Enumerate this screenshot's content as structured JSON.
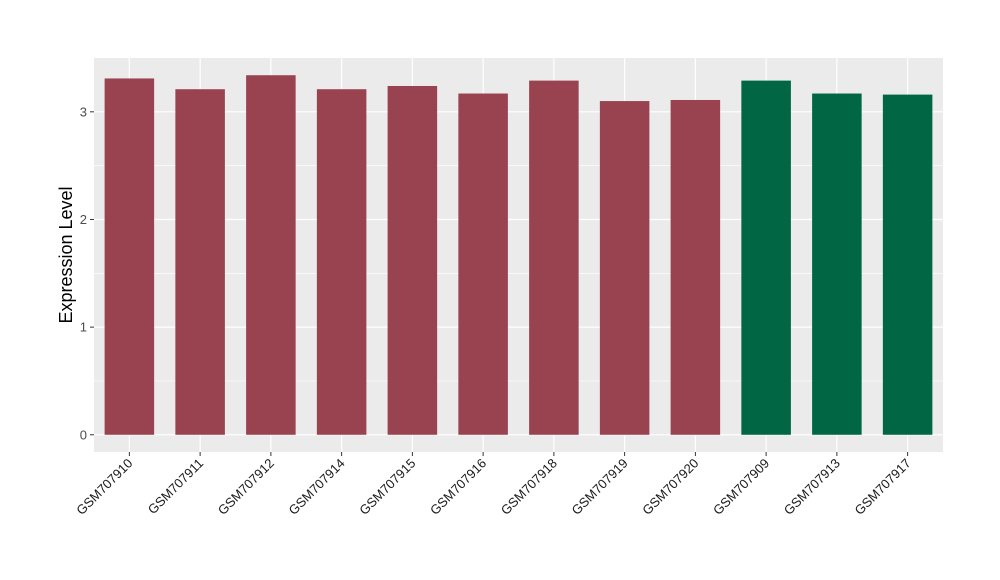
{
  "chart_data": {
    "type": "bar",
    "title": "",
    "xlabel": "",
    "ylabel": "Expression Level",
    "ylim": [
      -0.16,
      3.5
    ],
    "yticks": [
      0,
      1,
      2,
      3
    ],
    "grid": true,
    "legend": "none",
    "categories": [
      "GSM707910",
      "GSM707911",
      "GSM707912",
      "GSM707914",
      "GSM707915",
      "GSM707916",
      "GSM707918",
      "GSM707919",
      "GSM707920",
      "GSM707909",
      "GSM707913",
      "GSM707917"
    ],
    "values": [
      3.31,
      3.21,
      3.34,
      3.21,
      3.24,
      3.17,
      3.29,
      3.1,
      3.11,
      3.29,
      3.17,
      3.16
    ],
    "bar_colors": [
      "#994350",
      "#994350",
      "#994350",
      "#994350",
      "#994350",
      "#994350",
      "#994350",
      "#994350",
      "#994350",
      "#006644",
      "#006644",
      "#006644"
    ],
    "panel_background": "#ebebeb",
    "gridline_color": "#ffffff"
  }
}
